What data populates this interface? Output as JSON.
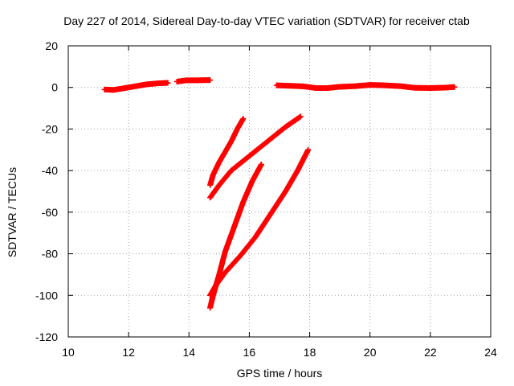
{
  "chart_data": {
    "type": "scatter",
    "title": "Day 227 of 2014, Sidereal Day-to-day VTEC variation (SDTVAR) for receiver ctab",
    "xlabel": "GPS time / hours",
    "ylabel": "SDTVAR / TECUs",
    "xlim": [
      10,
      24
    ],
    "ylim": [
      -120,
      20
    ],
    "xticks": [
      10,
      12,
      14,
      16,
      18,
      20,
      22,
      24
    ],
    "yticks": [
      -120,
      -100,
      -80,
      -60,
      -40,
      -20,
      0,
      20
    ],
    "grid": true,
    "marker": "plus",
    "color": "#ff0000",
    "series": [
      {
        "points": [
          [
            11.2,
            -1
          ],
          [
            11.5,
            -1.2
          ],
          [
            11.8,
            -0.5
          ],
          [
            12.2,
            0.5
          ],
          [
            12.6,
            1.5
          ],
          [
            13.0,
            2
          ],
          [
            13.3,
            2.2
          ]
        ]
      },
      {
        "points": [
          [
            13.6,
            2.8
          ],
          [
            13.9,
            3.4
          ],
          [
            14.2,
            3.4
          ],
          [
            14.5,
            3.5
          ],
          [
            14.7,
            3.5
          ]
        ]
      },
      {
        "points": [
          [
            16.9,
            1
          ],
          [
            17.3,
            0.8
          ],
          [
            17.8,
            0.5
          ],
          [
            18.2,
            -0.3
          ],
          [
            18.6,
            -0.3
          ],
          [
            19.0,
            0.3
          ],
          [
            19.5,
            0.6
          ],
          [
            20.0,
            1.2
          ],
          [
            20.5,
            1
          ],
          [
            21.0,
            0.6
          ],
          [
            21.5,
            -0.2
          ],
          [
            22.0,
            -0.3
          ],
          [
            22.5,
            -0.1
          ],
          [
            22.8,
            0.2
          ]
        ]
      },
      {
        "points": [
          [
            14.7,
            -47
          ],
          [
            14.8,
            -42
          ],
          [
            15.0,
            -36
          ],
          [
            15.2,
            -31
          ],
          [
            15.4,
            -26
          ],
          [
            15.6,
            -20
          ],
          [
            15.8,
            -15
          ]
        ]
      },
      {
        "points": [
          [
            14.7,
            -53
          ],
          [
            15.0,
            -47
          ],
          [
            15.4,
            -40
          ],
          [
            16.0,
            -33
          ],
          [
            16.6,
            -26
          ],
          [
            17.2,
            -19
          ],
          [
            17.7,
            -14
          ]
        ]
      },
      {
        "points": [
          [
            14.7,
            -106
          ],
          [
            14.8,
            -100
          ],
          [
            15.0,
            -90
          ],
          [
            15.2,
            -79
          ],
          [
            15.5,
            -67
          ],
          [
            15.8,
            -55
          ],
          [
            16.1,
            -45
          ],
          [
            16.4,
            -37
          ]
        ]
      },
      {
        "points": [
          [
            14.7,
            -100
          ],
          [
            14.9,
            -95
          ],
          [
            15.2,
            -89
          ],
          [
            15.7,
            -81
          ],
          [
            16.2,
            -72
          ],
          [
            16.7,
            -61
          ],
          [
            17.2,
            -50
          ],
          [
            17.6,
            -40
          ],
          [
            17.95,
            -30
          ]
        ]
      }
    ]
  }
}
